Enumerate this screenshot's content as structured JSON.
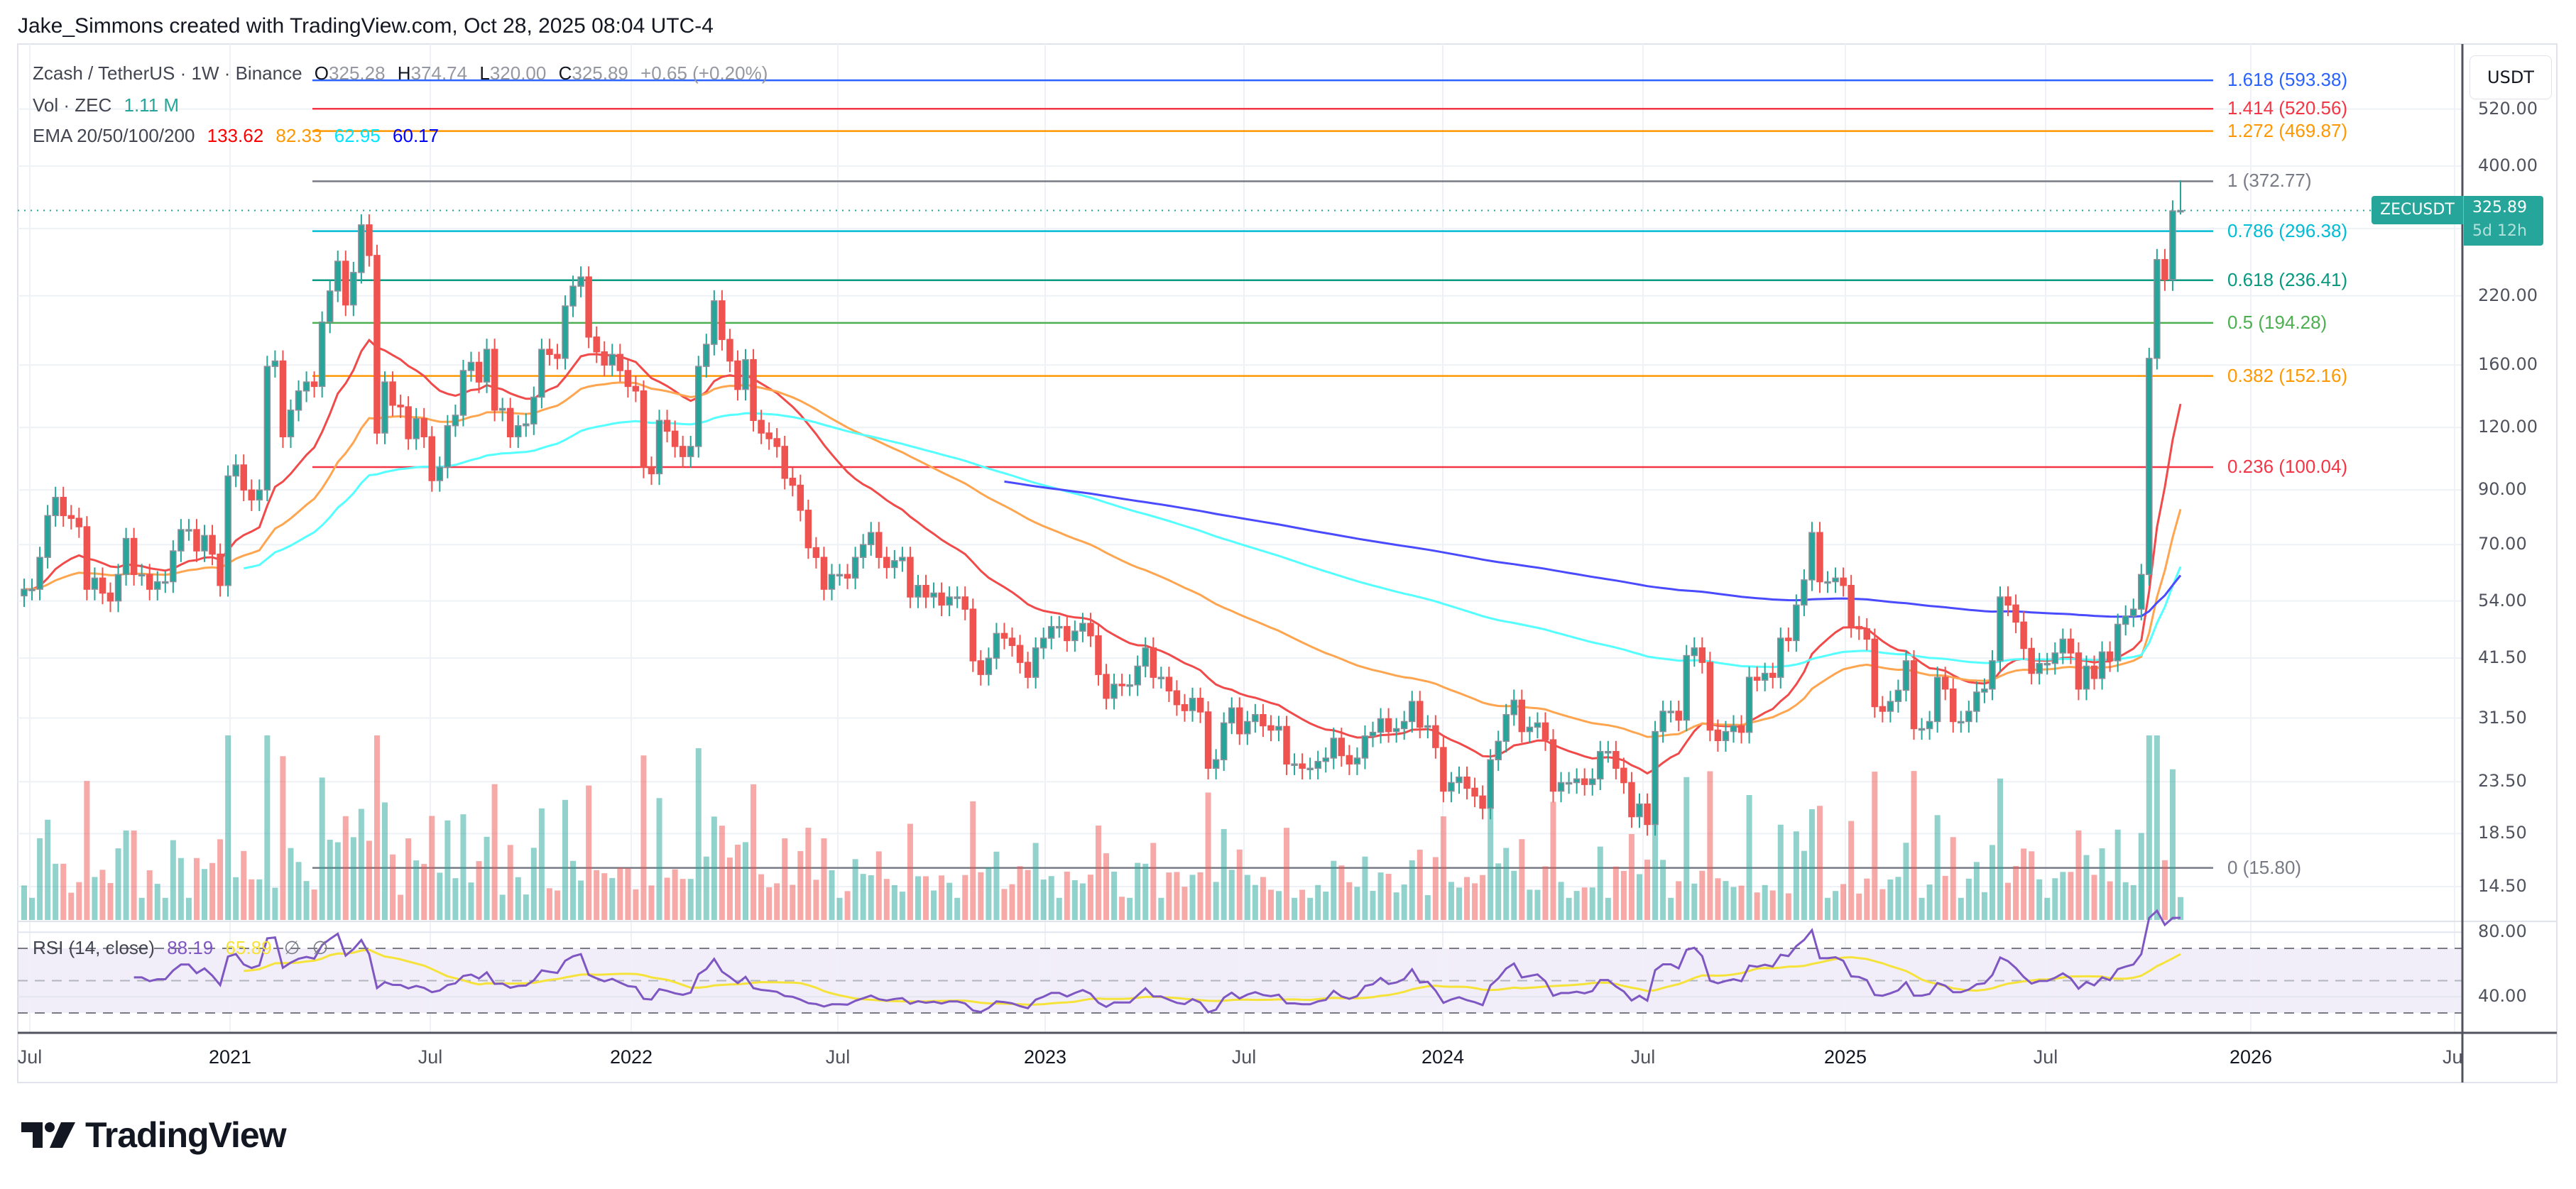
{
  "header": {
    "attribution": "Jake_Simmons created with TradingView.com, Oct 28, 2025 08:04 UTC-4"
  },
  "legend": {
    "symbol": "Zcash / TetherUS · 1W · Binance",
    "o_label": "O",
    "o": "325.28",
    "h_label": "H",
    "h": "374.74",
    "l_label": "L",
    "l": "320.00",
    "c_label": "C",
    "c": "325.89",
    "change": "+0.65 (+0.20%)",
    "vol_label": "Vol · ZEC",
    "vol_value": "1.11 M",
    "ema_label": "EMA 20/50/100/200",
    "ema_values": [
      "133.62",
      "82.33",
      "62.95",
      "60.17"
    ]
  },
  "rsi_legend": {
    "label": "RSI (14, close)",
    "rsi": "88.19",
    "ma": "65.89",
    "na1": "∅",
    "na2": "∅"
  },
  "price_axis": {
    "currency_button": "USDT",
    "ticks": [
      "520.00",
      "400.00",
      "220.00",
      "160.00",
      "120.00",
      "90.00",
      "70.00",
      "54.00",
      "41.50",
      "31.50",
      "23.50",
      "18.50",
      "14.50"
    ]
  },
  "rsi_axis": {
    "ticks": [
      "80.00",
      "40.00"
    ]
  },
  "price_badge": {
    "symbol": "ZECUSDT",
    "price": "325.89",
    "countdown": "5d 12h"
  },
  "time_axis": {
    "ticks": [
      "Jul",
      "2021",
      "Jul",
      "2022",
      "Jul",
      "2023",
      "Jul",
      "2024",
      "Jul",
      "2025",
      "Jul",
      "2026",
      "Ju"
    ]
  },
  "fib_levels": [
    {
      "level": "1.618",
      "price": "593.38",
      "color": "#2962ff"
    },
    {
      "level": "1.414",
      "price": "520.56",
      "color": "#f23645"
    },
    {
      "level": "1.272",
      "price": "469.87",
      "color": "#ff9800"
    },
    {
      "level": "1",
      "price": "372.77",
      "color": "#787b86"
    },
    {
      "level": "0.786",
      "price": "296.38",
      "color": "#00bcd4"
    },
    {
      "level": "0.618",
      "price": "236.41",
      "color": "#089981"
    },
    {
      "level": "0.5",
      "price": "194.28",
      "color": "#4caf50"
    },
    {
      "level": "0.382",
      "price": "152.16",
      "color": "#ff9800"
    },
    {
      "level": "0.236",
      "price": "100.04",
      "color": "#f23645"
    },
    {
      "level": "0",
      "price": "15.80",
      "color": "#787b86"
    }
  ],
  "colors": {
    "up": "#26a69a",
    "down": "#ef5350",
    "ema20": "#ff0000",
    "ema50": "#ff9800",
    "ema100": "#00ffff",
    "ema200": "#0000ff",
    "ema20_line": "#f04a4a",
    "ema50_line": "#ffa54f",
    "ema100_line": "#55ffff",
    "ema200_line": "#4a4aff",
    "rsi": "#7e57c2",
    "rsi_ma": "#f5e23a",
    "volume_value": "#26a69a"
  },
  "logo": {
    "text": "TradingView"
  },
  "chart_data": {
    "type": "candlestick",
    "title": "Zcash / TetherUS · 1W · Binance",
    "interval": "1W",
    "y_scale": "log",
    "ylim": [
      11,
      640
    ],
    "grid": true,
    "first_week": "2020-07",
    "last_week": "2025-10-27",
    "closes": [
      57,
      57,
      66,
      80,
      87,
      80,
      79,
      76,
      57,
      60,
      56,
      54,
      61,
      72,
      61,
      61,
      57,
      59,
      59,
      68,
      75,
      75,
      68,
      73,
      67,
      58,
      96,
      101,
      90,
      86,
      90,
      159,
      163,
      115,
      130,
      142,
      148,
      145,
      195,
      225,
      258,
      211,
      245,
      305,
      265,
      117,
      148,
      133,
      132,
      114,
      125,
      115,
      94,
      100,
      121,
      127,
      156,
      162,
      148,
      172,
      130,
      131,
      115,
      121,
      122,
      138,
      172,
      168,
      165,
      210,
      230,
      240,
      182,
      170,
      160,
      168,
      156,
      145,
      142,
      100,
      97,
      124,
      118,
      110,
      105,
      110,
      159,
      176,
      215,
      180,
      163,
      143,
      164,
      124,
      117,
      114,
      110,
      95,
      92,
      82,
      69,
      66,
      57,
      61,
      61,
      60,
      66,
      70,
      74,
      66,
      63,
      65,
      66,
      55,
      58,
      55,
      56,
      53,
      55,
      55,
      52,
      41,
      38.5,
      41.5,
      46.5,
      45.5,
      44,
      40.7,
      38,
      43.5,
      45.5,
      48,
      48,
      45,
      47,
      48.7,
      46,
      38.5,
      34.5,
      36.8,
      36.7,
      36.7,
      40,
      43.5,
      38,
      38,
      35.7,
      33.5,
      32.6,
      34.5,
      32.4,
      25,
      26,
      30.8,
      33,
      29.3,
      31,
      32,
      30.4,
      29.8,
      30.3,
      25.5,
      25.5,
      25,
      25,
      25.8,
      26.2,
      28.7,
      26.5,
      25.5,
      26.2,
      29,
      29.5,
      31.4,
      29.6,
      30,
      31,
      34,
      30.2,
      30.4,
      27.5,
      22.5,
      23.4,
      24,
      22.8,
      22,
      20.8,
      26,
      28.3,
      32,
      34.2,
      29.6,
      30.2,
      30.8,
      28.5,
      22.5,
      23.4,
      23.4,
      23.8,
      23.2,
      23.8,
      27,
      27,
      25,
      23.4,
      20,
      21.2,
      19.3,
      29.6,
      32.5,
      32.5,
      31.2,
      42,
      43.5,
      40.7,
      29.8,
      28.4,
      29.6,
      30.4,
      29.5,
      38,
      37.5,
      38.7,
      38,
      45.5,
      45,
      53,
      59.5,
      74,
      59,
      59,
      60,
      58,
      48,
      47.5,
      45.3,
      33.2,
      32.5,
      34,
      35.8,
      41,
      30,
      30,
      31,
      38,
      36,
      31,
      31,
      32.5,
      35.5,
      36,
      41,
      55,
      53,
      49,
      43.4,
      38.7,
      40.5,
      40.5,
      42.5,
      45.3,
      42.5,
      36,
      40,
      37.8,
      42.7,
      41,
      48.5,
      50.4,
      52,
      61,
      165,
      260,
      237,
      325.28,
      325.89
    ],
    "last_candle": {
      "open": 325.28,
      "high": 374.74,
      "low": 320.0,
      "close": 325.89,
      "change": 0.65,
      "change_pct": 0.2,
      "volume_m": 1.11
    },
    "indicators": {
      "ema": {
        "periods": [
          20,
          50,
          100,
          200
        ],
        "last": [
          133.62,
          82.33,
          62.95,
          60.17
        ]
      },
      "rsi": {
        "period": 14,
        "source": "close",
        "last": 88.19,
        "ma_last": 65.89,
        "levels": [
          70,
          50,
          30
        ]
      }
    },
    "fibonacci": {
      "from": 15.8,
      "to": 372.77
    }
  }
}
